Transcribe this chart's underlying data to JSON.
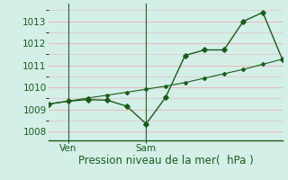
{
  "background_color": "#d4eee8",
  "grid_color": "#e8b8b8",
  "line_color": "#1a5c1a",
  "vline_color": "#2a5c2a",
  "smooth_x": [
    0,
    1,
    2,
    3,
    4,
    5,
    6,
    7,
    8,
    9,
    10,
    11,
    12
  ],
  "smooth_y": [
    1009.25,
    1009.38,
    1009.52,
    1009.65,
    1009.78,
    1009.92,
    1010.06,
    1010.22,
    1010.42,
    1010.62,
    1010.82,
    1011.05,
    1011.28
  ],
  "jagged_x": [
    0,
    1,
    2,
    3,
    4,
    5,
    6,
    7,
    8,
    9,
    10,
    11,
    12
  ],
  "jagged_y": [
    1009.25,
    1009.38,
    1009.45,
    1009.42,
    1009.15,
    1008.35,
    1009.55,
    1011.45,
    1011.7,
    1011.7,
    1013.0,
    1013.4,
    1011.28
  ],
  "xtick_positions": [
    1,
    5
  ],
  "xtick_labels": [
    "Ven",
    "Sam"
  ],
  "ytick_values": [
    1008,
    1009,
    1010,
    1011,
    1012,
    1013
  ],
  "ylim": [
    1007.6,
    1013.8
  ],
  "xlim": [
    0,
    12
  ],
  "xlabel": "Pression niveau de la mer(  hPa )",
  "vline_positions": [
    1,
    5
  ],
  "label_fontsize": 8.5,
  "tick_fontsize": 7.5
}
